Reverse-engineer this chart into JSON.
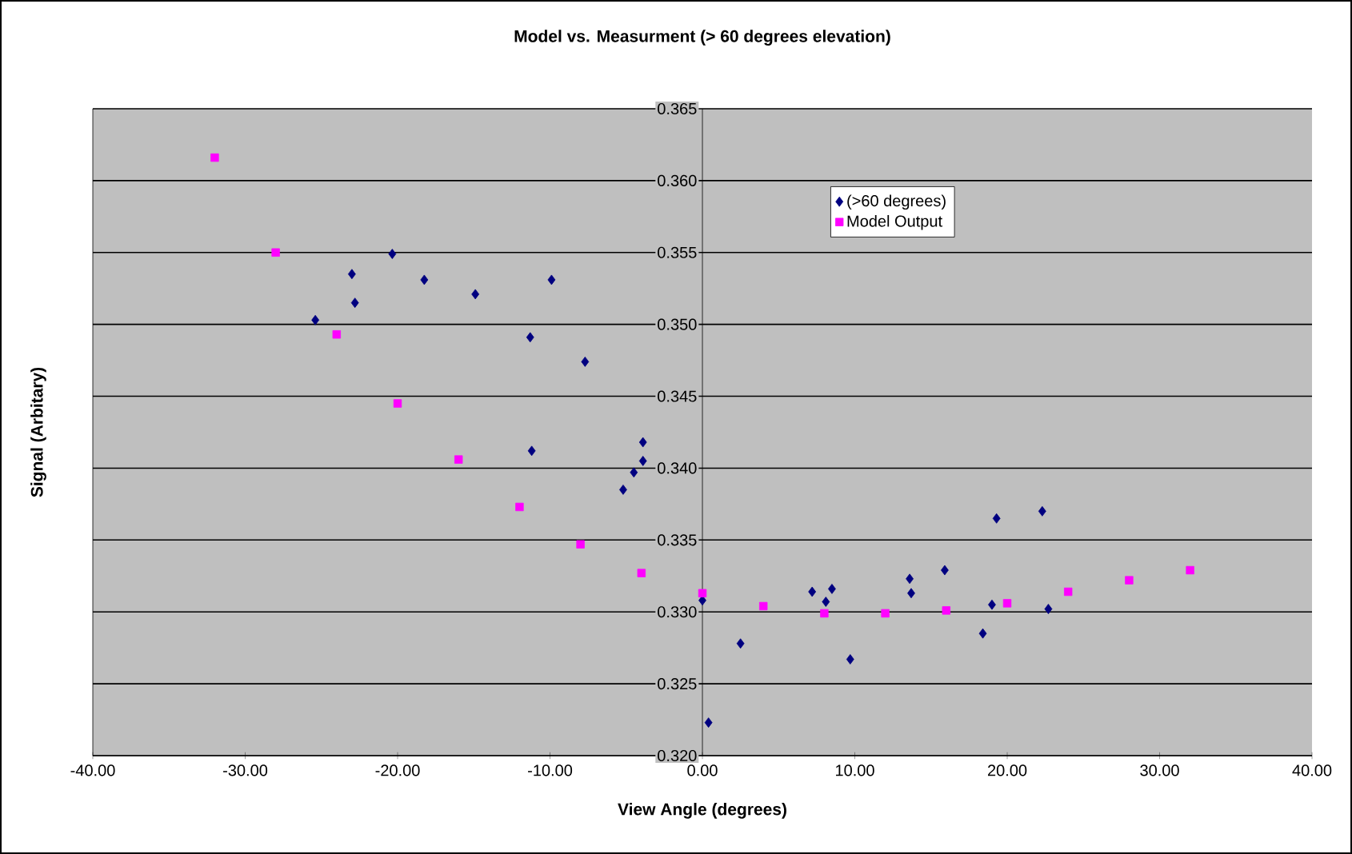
{
  "chart_data": {
    "type": "scatter",
    "title": "Model vs. Measurment (> 60 degrees elevation)",
    "xlabel": "View Angle (degrees)",
    "ylabel": "Signal (Arbitary)",
    "xlim": [
      -40,
      40
    ],
    "ylim": [
      0.32,
      0.365
    ],
    "xticks": [
      {
        "value": -40,
        "label": "-40.00"
      },
      {
        "value": -30,
        "label": "-30.00"
      },
      {
        "value": -20,
        "label": "-20.00"
      },
      {
        "value": -10,
        "label": "-10.00"
      },
      {
        "value": 0,
        "label": "0.00"
      },
      {
        "value": 10,
        "label": "10.00"
      },
      {
        "value": 20,
        "label": "20.00"
      },
      {
        "value": 30,
        "label": "30.00"
      },
      {
        "value": 40,
        "label": "40.00"
      }
    ],
    "yticks": [
      {
        "value": 0.32,
        "label": "0.320"
      },
      {
        "value": 0.325,
        "label": "0.325"
      },
      {
        "value": 0.33,
        "label": "0.330"
      },
      {
        "value": 0.335,
        "label": "0.335"
      },
      {
        "value": 0.34,
        "label": "0.340"
      },
      {
        "value": 0.345,
        "label": "0.345"
      },
      {
        "value": 0.35,
        "label": "0.350"
      },
      {
        "value": 0.355,
        "label": "0.355"
      },
      {
        "value": 0.36,
        "label": "0.360"
      },
      {
        "value": 0.365,
        "label": "0.365"
      }
    ],
    "grid": "y",
    "legend": "top right",
    "series": [
      {
        "name": "(>60 degrees)",
        "color": "#000080",
        "marker": "diamond",
        "x": [
          -25.4,
          -23.0,
          -22.8,
          -20.35,
          -18.25,
          -14.9,
          -9.9,
          -11.3,
          -7.7,
          -11.2,
          -3.9,
          -3.9,
          -4.5,
          -5.2,
          0.0,
          0.4,
          2.5,
          7.2,
          8.1,
          8.5,
          9.7,
          13.6,
          13.7,
          15.9,
          18.4,
          19.0,
          19.3,
          22.3,
          22.7
        ],
        "values": [
          0.3503,
          0.3535,
          0.3515,
          0.3549,
          0.3531,
          0.3521,
          0.3531,
          0.3491,
          0.3474,
          0.3412,
          0.3418,
          0.3405,
          0.3397,
          0.3385,
          0.3308,
          0.3223,
          0.3278,
          0.3314,
          0.3307,
          0.3316,
          0.3267,
          0.3323,
          0.3313,
          0.3329,
          0.3285,
          0.3305,
          0.3365,
          0.337,
          0.3302
        ]
      },
      {
        "name": "Model Output",
        "color": "#ff00ff",
        "marker": "square",
        "x": [
          -32,
          -28,
          -24,
          -20,
          -16,
          -12,
          -8,
          -4,
          0,
          4,
          8,
          12,
          16,
          20,
          24,
          28,
          32
        ],
        "values": [
          0.3616,
          0.355,
          0.3493,
          0.3445,
          0.3406,
          0.3373,
          0.3347,
          0.3327,
          0.3313,
          0.3304,
          0.3299,
          0.3299,
          0.3301,
          0.3306,
          0.3314,
          0.3322,
          0.3329
        ]
      }
    ]
  }
}
